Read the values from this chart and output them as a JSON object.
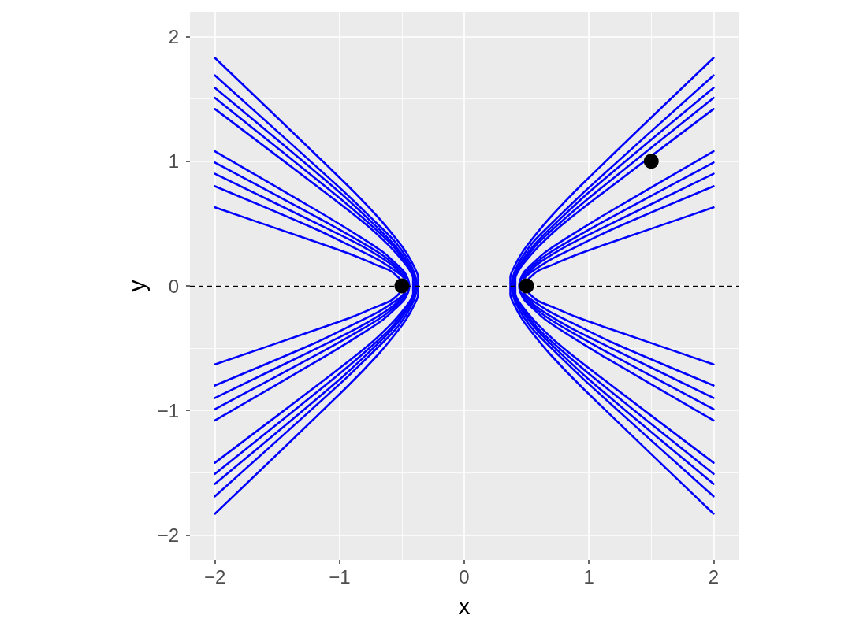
{
  "chart_data": {
    "type": "line",
    "xlabel": "x",
    "ylabel": "y",
    "xlim": [
      -2.2,
      2.2
    ],
    "ylim": [
      -2.2,
      2.2
    ],
    "xticks": [
      {
        "value": -2,
        "label": "−2"
      },
      {
        "value": -1,
        "label": "−1"
      },
      0,
      1,
      2
    ],
    "yticks": [
      {
        "value": -2,
        "label": "−2"
      },
      {
        "value": -1,
        "label": "−1"
      },
      0,
      1,
      2
    ],
    "grid": true,
    "marker": "none",
    "ref_lines": [
      {
        "axis": "y",
        "value": 0,
        "color": "#000000",
        "line_style": "dashed"
      }
    ],
    "series": [
      {
        "color": "#0000ff",
        "x": [
          2,
          0.95,
          0.69,
          0.54,
          0.46,
          0.4,
          0.37,
          0.37,
          0.37,
          0.4,
          0.46,
          0.54,
          0.69,
          0.95,
          2
        ],
        "values": [
          -1.83,
          -0.82,
          -0.55,
          -0.37,
          -0.26,
          -0.15,
          -0.07,
          0,
          0.07,
          0.15,
          0.26,
          0.37,
          0.55,
          0.82,
          1.83
        ]
      },
      {
        "color": "#0000ff",
        "x": [
          2,
          0.99,
          0.72,
          0.56,
          0.47,
          0.42,
          0.39,
          0.38,
          0.39,
          0.42,
          0.47,
          0.56,
          0.72,
          0.99,
          2
        ],
        "values": [
          -1.69,
          -0.78,
          -0.52,
          -0.36,
          -0.24,
          -0.15,
          -0.07,
          0,
          0.07,
          0.15,
          0.24,
          0.36,
          0.52,
          0.78,
          1.69
        ]
      },
      {
        "color": "#0000ff",
        "x": [
          2,
          1.01,
          0.73,
          0.58,
          0.49,
          0.43,
          0.4,
          0.39,
          0.4,
          0.43,
          0.49,
          0.58,
          0.73,
          1.01,
          2
        ],
        "values": [
          -1.59,
          -0.76,
          -0.5,
          -0.35,
          -0.24,
          -0.14,
          -0.06,
          0,
          0.06,
          0.14,
          0.24,
          0.35,
          0.5,
          0.76,
          1.59
        ]
      },
      {
        "color": "#0000ff",
        "x": [
          2,
          1.03,
          0.75,
          0.59,
          0.5,
          0.43,
          0.4,
          0.4,
          0.4,
          0.43,
          0.5,
          0.59,
          0.75,
          1.03,
          2
        ],
        "values": [
          -1.51,
          -0.73,
          -0.49,
          -0.34,
          -0.23,
          -0.14,
          -0.06,
          0,
          0.06,
          0.14,
          0.23,
          0.34,
          0.49,
          0.73,
          1.51
        ]
      },
      {
        "color": "#0000ff",
        "x": [
          2,
          1.05,
          0.76,
          0.6,
          0.51,
          0.44,
          0.41,
          0.41,
          0.41,
          0.44,
          0.51,
          0.6,
          0.76,
          1.05,
          2
        ],
        "values": [
          -1.42,
          -0.7,
          -0.47,
          -0.32,
          -0.22,
          -0.13,
          -0.06,
          0,
          0.06,
          0.13,
          0.22,
          0.32,
          0.47,
          0.7,
          1.42
        ]
      },
      {
        "color": "#0000ff",
        "x": [
          2,
          1.14,
          0.83,
          0.65,
          0.55,
          0.48,
          0.45,
          0.44,
          0.45,
          0.48,
          0.55,
          0.65,
          0.83,
          1.14,
          2
        ],
        "values": [
          -1.08,
          -0.58,
          -0.39,
          -0.27,
          -0.18,
          -0.11,
          -0.05,
          0,
          0.05,
          0.11,
          0.18,
          0.27,
          0.39,
          0.58,
          1.08
        ]
      },
      {
        "color": "#0000ff",
        "x": [
          2,
          1.16,
          0.84,
          0.66,
          0.56,
          0.49,
          0.45,
          null,
          0.45,
          0.49,
          0.56,
          0.66,
          0.84,
          1.16,
          2
        ],
        "values": [
          -0.99,
          -0.54,
          -0.36,
          -0.25,
          -0.17,
          -0.1,
          -0.05,
          null,
          0.05,
          0.1,
          0.17,
          0.25,
          0.36,
          0.54,
          0.99
        ]
      },
      {
        "color": "#0000ff",
        "x": [
          2,
          1.18,
          0.86,
          0.67,
          0.57,
          0.5,
          0.47,
          null,
          0.47,
          0.5,
          0.57,
          0.67,
          0.86,
          1.18,
          2
        ],
        "values": [
          -0.9,
          -0.5,
          -0.34,
          -0.23,
          -0.16,
          -0.09,
          -0.06,
          null,
          0.06,
          0.09,
          0.16,
          0.23,
          0.34,
          0.5,
          0.9
        ]
      },
      {
        "color": "#0000ff",
        "x": [
          2,
          1.2,
          0.87,
          0.69,
          0.58,
          0.51,
          0.48,
          null,
          0.48,
          0.51,
          0.58,
          0.69,
          0.87,
          1.2,
          2
        ],
        "values": [
          -0.8,
          -0.46,
          -0.3,
          -0.21,
          -0.14,
          -0.09,
          -0.06,
          null,
          0.06,
          0.09,
          0.14,
          0.21,
          0.3,
          0.46,
          0.8
        ]
      },
      {
        "color": "#0000ff",
        "x": [
          2,
          1.24,
          0.9,
          0.71,
          0.59,
          0.52,
          null,
          0.52,
          0.59,
          0.71,
          0.9,
          1.24,
          2
        ],
        "values": [
          -0.63,
          -0.37,
          -0.25,
          -0.17,
          -0.12,
          -0.06,
          null,
          0.06,
          0.12,
          0.17,
          0.25,
          0.37,
          0.63
        ]
      },
      {
        "color": "#0000ff",
        "x": [
          -2,
          -0.95,
          -0.69,
          -0.54,
          -0.46,
          -0.4,
          -0.37,
          -0.37,
          -0.37,
          -0.4,
          -0.46,
          -0.54,
          -0.69,
          -0.95,
          -2
        ],
        "values": [
          -1.83,
          -0.82,
          -0.55,
          -0.37,
          -0.26,
          -0.15,
          -0.07,
          0,
          0.07,
          0.15,
          0.26,
          0.37,
          0.55,
          0.82,
          1.83
        ]
      },
      {
        "color": "#0000ff",
        "x": [
          -2,
          -0.99,
          -0.72,
          -0.56,
          -0.47,
          -0.42,
          -0.39,
          -0.38,
          -0.39,
          -0.42,
          -0.47,
          -0.56,
          -0.72,
          -0.99,
          -2
        ],
        "values": [
          -1.69,
          -0.78,
          -0.52,
          -0.36,
          -0.24,
          -0.15,
          -0.07,
          0,
          0.07,
          0.15,
          0.24,
          0.36,
          0.52,
          0.78,
          1.69
        ]
      },
      {
        "color": "#0000ff",
        "x": [
          -2,
          -1.01,
          -0.73,
          -0.58,
          -0.49,
          -0.43,
          -0.4,
          -0.39,
          -0.4,
          -0.43,
          -0.49,
          -0.58,
          -0.73,
          -1.01,
          -2
        ],
        "values": [
          -1.59,
          -0.76,
          -0.5,
          -0.35,
          -0.24,
          -0.14,
          -0.06,
          0,
          0.06,
          0.14,
          0.24,
          0.35,
          0.5,
          0.76,
          1.59
        ]
      },
      {
        "color": "#0000ff",
        "x": [
          -2,
          -1.03,
          -0.75,
          -0.59,
          -0.5,
          -0.43,
          -0.4,
          -0.4,
          -0.4,
          -0.43,
          -0.5,
          -0.59,
          -0.75,
          -1.03,
          -2
        ],
        "values": [
          -1.51,
          -0.73,
          -0.49,
          -0.34,
          -0.23,
          -0.14,
          -0.06,
          0,
          0.06,
          0.14,
          0.23,
          0.34,
          0.49,
          0.73,
          1.51
        ]
      },
      {
        "color": "#0000ff",
        "x": [
          -2,
          -1.05,
          -0.76,
          -0.6,
          -0.51,
          -0.44,
          -0.41,
          -0.41,
          -0.41,
          -0.44,
          -0.51,
          -0.6,
          -0.76,
          -1.05,
          -2
        ],
        "values": [
          -1.42,
          -0.7,
          -0.47,
          -0.32,
          -0.22,
          -0.13,
          -0.06,
          0,
          0.06,
          0.13,
          0.22,
          0.32,
          0.47,
          0.7,
          1.42
        ]
      },
      {
        "color": "#0000ff",
        "x": [
          -2,
          -1.14,
          -0.83,
          -0.65,
          -0.55,
          -0.48,
          -0.45,
          -0.44,
          -0.45,
          -0.48,
          -0.55,
          -0.65,
          -0.83,
          -1.14,
          -2
        ],
        "values": [
          -1.08,
          -0.58,
          -0.39,
          -0.27,
          -0.18,
          -0.11,
          -0.05,
          0,
          0.05,
          0.11,
          0.18,
          0.27,
          0.39,
          0.58,
          1.08
        ]
      },
      {
        "color": "#0000ff",
        "x": [
          -2,
          -1.16,
          -0.84,
          -0.66,
          -0.56,
          -0.49,
          -0.45,
          null,
          -0.45,
          -0.49,
          -0.56,
          -0.66,
          -0.84,
          -1.16,
          -2
        ],
        "values": [
          -0.99,
          -0.54,
          -0.36,
          -0.25,
          -0.17,
          -0.1,
          -0.05,
          null,
          0.05,
          0.1,
          0.17,
          0.25,
          0.36,
          0.54,
          0.99
        ]
      },
      {
        "color": "#0000ff",
        "x": [
          -2,
          -1.18,
          -0.86,
          -0.67,
          -0.57,
          -0.5,
          -0.47,
          null,
          -0.47,
          -0.5,
          -0.57,
          -0.67,
          -0.86,
          -1.18,
          -2
        ],
        "values": [
          -0.9,
          -0.5,
          -0.34,
          -0.23,
          -0.16,
          -0.09,
          -0.06,
          null,
          0.06,
          0.09,
          0.16,
          0.23,
          0.34,
          0.5,
          0.9
        ]
      },
      {
        "color": "#0000ff",
        "x": [
          -2,
          -1.2,
          -0.87,
          -0.69,
          -0.58,
          -0.51,
          -0.48,
          null,
          -0.48,
          -0.51,
          -0.58,
          -0.69,
          -0.87,
          -1.2,
          -2
        ],
        "values": [
          -0.8,
          -0.46,
          -0.3,
          -0.21,
          -0.14,
          -0.09,
          -0.06,
          null,
          0.06,
          0.09,
          0.14,
          0.21,
          0.3,
          0.46,
          0.8
        ]
      },
      {
        "color": "#0000ff",
        "x": [
          -2,
          -1.24,
          -0.9,
          -0.71,
          -0.59,
          -0.52,
          null,
          -0.52,
          -0.59,
          -0.71,
          -0.9,
          -1.24,
          -2
        ],
        "values": [
          -0.63,
          -0.37,
          -0.25,
          -0.17,
          -0.12,
          -0.06,
          null,
          0.06,
          0.12,
          0.17,
          0.25,
          0.37,
          0.63
        ]
      },
      {
        "type": "scatter",
        "marker": "circle",
        "color": "#000000",
        "x": [
          -0.5,
          0.5,
          1.5
        ],
        "values": [
          0,
          0,
          1
        ]
      }
    ]
  }
}
